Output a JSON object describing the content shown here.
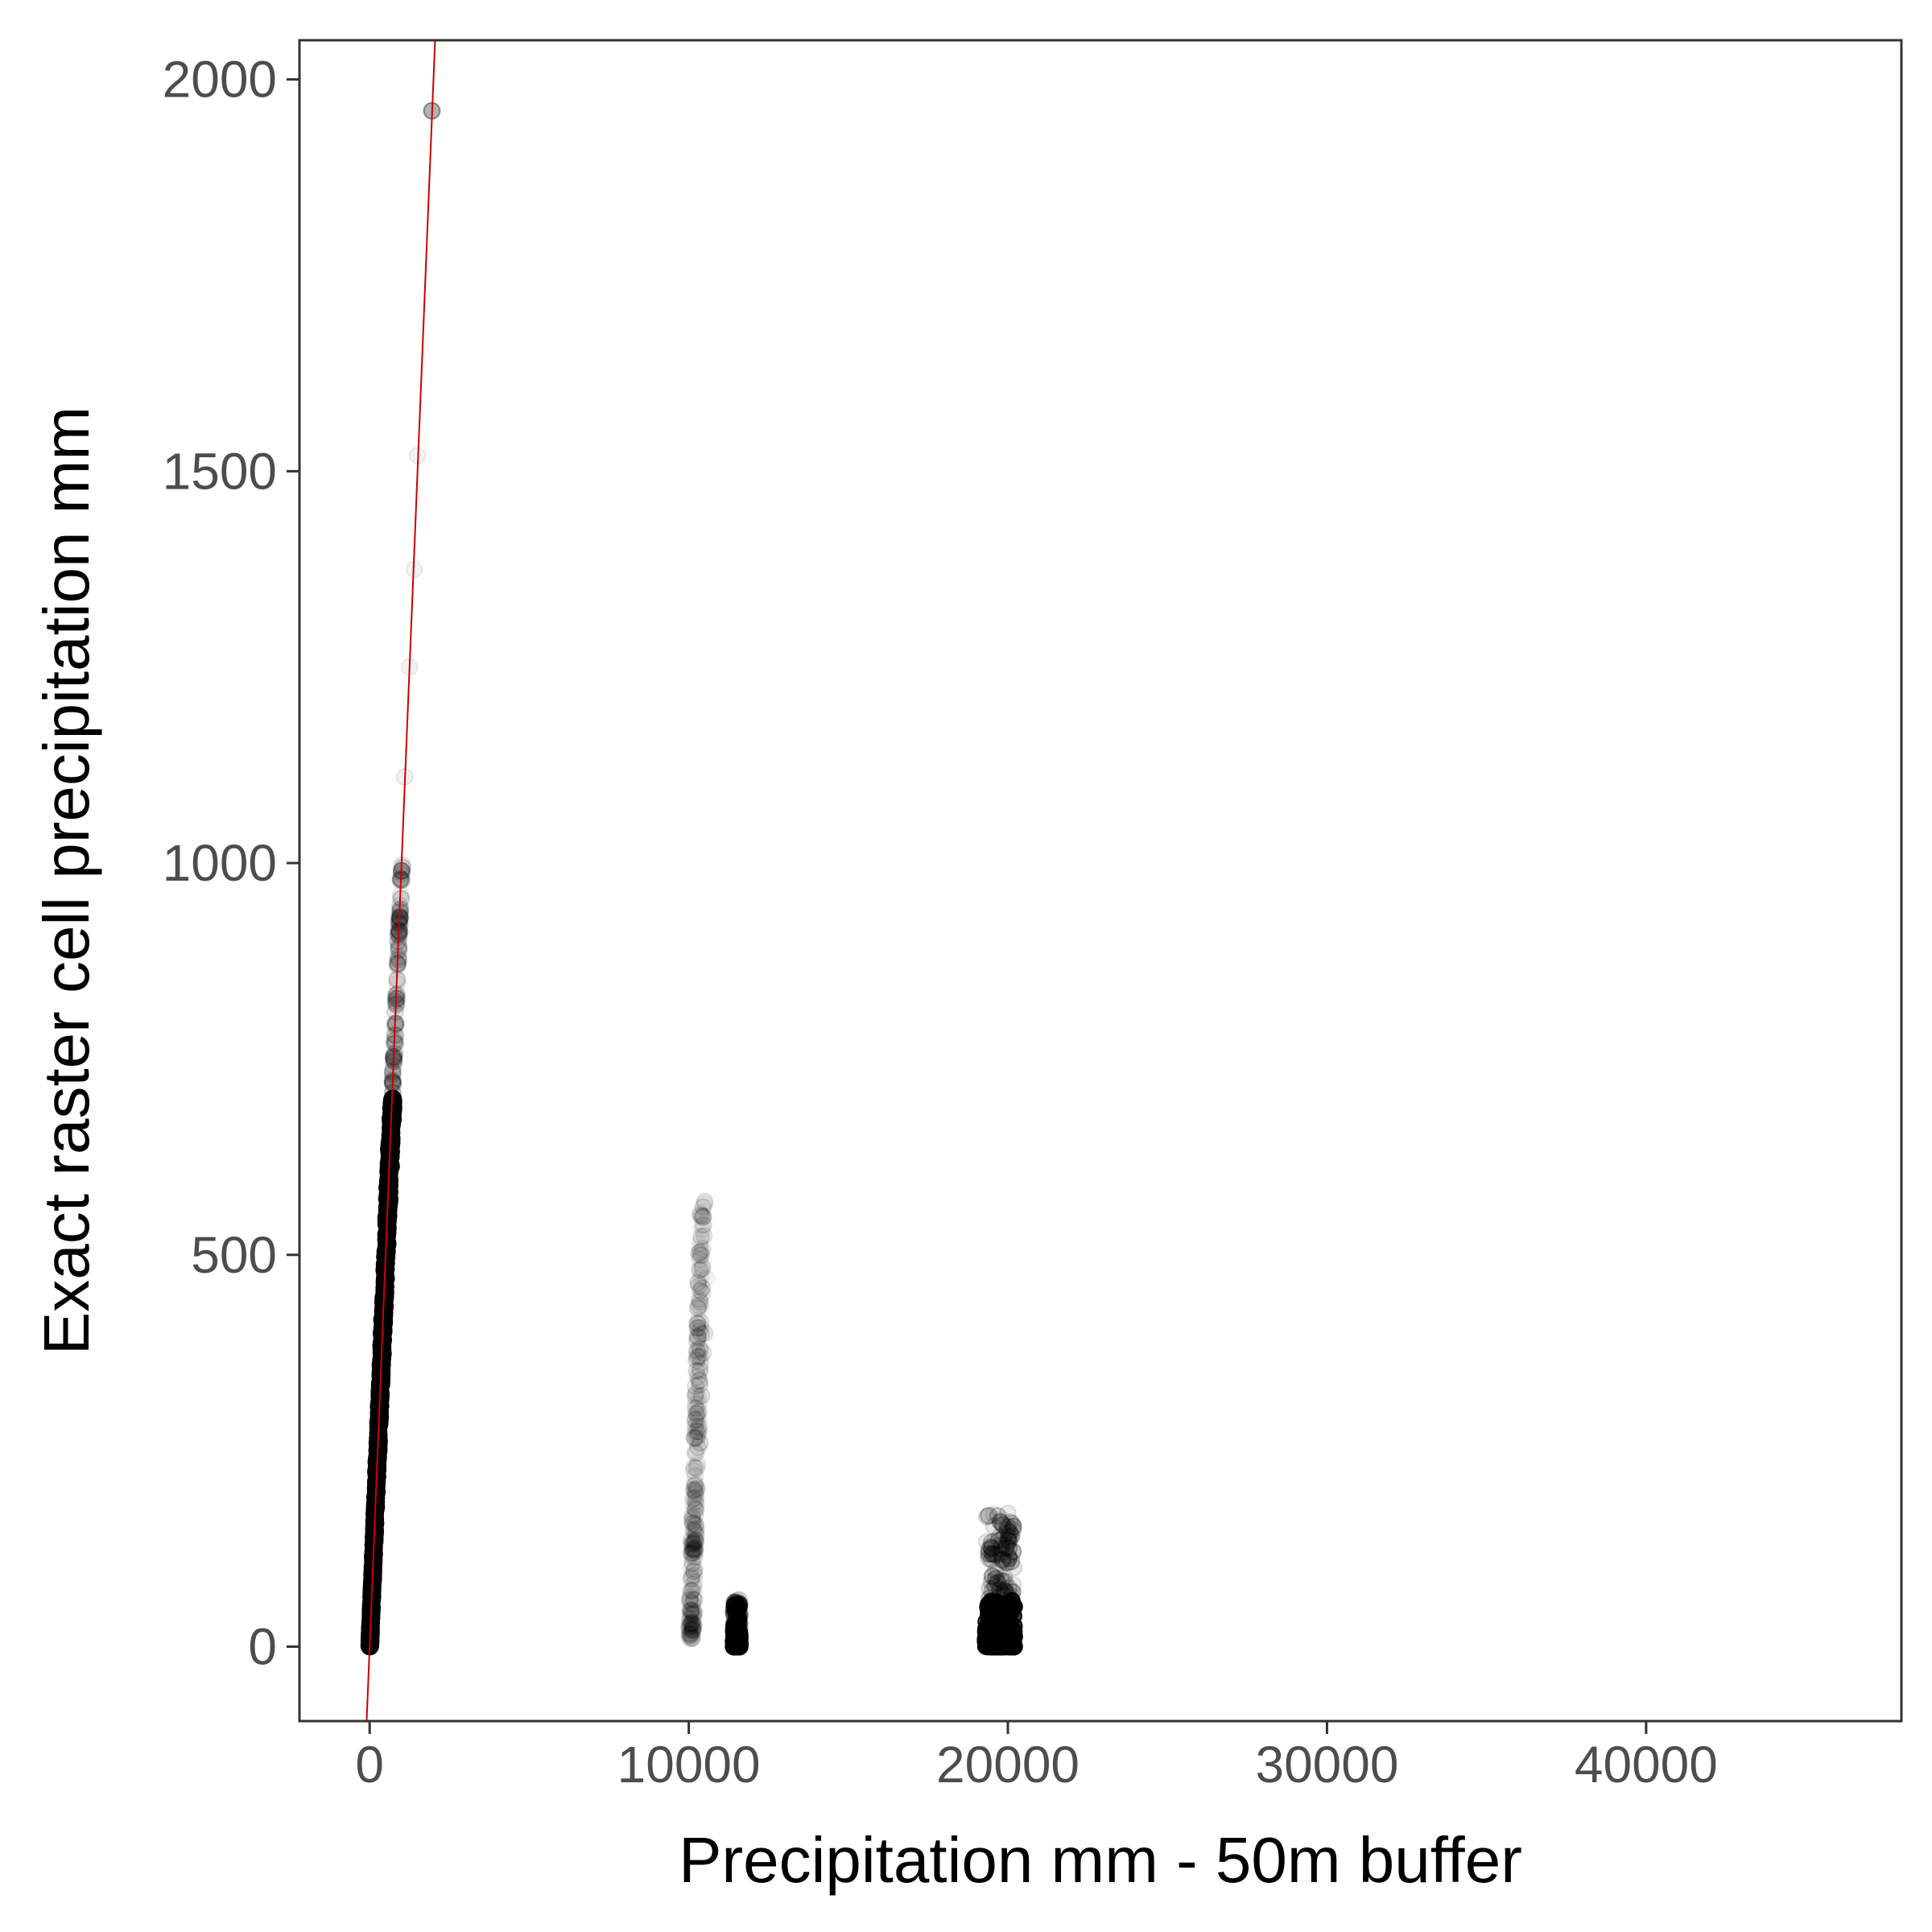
{
  "chart_data": {
    "type": "scatter",
    "title": "",
    "xlabel": "Precipitation mm - 50m buffer",
    "ylabel": "Exact raster cell precipitation mm",
    "xlim": [
      -2200,
      48000
    ],
    "ylim": [
      -95,
      2050
    ],
    "x_ticks": [
      0,
      10000,
      20000,
      30000,
      40000
    ],
    "x_tick_labels": [
      "0",
      "10000",
      "20000",
      "30000",
      "40000"
    ],
    "y_ticks": [
      0,
      500,
      1000,
      1500,
      2000
    ],
    "y_tick_labels": [
      "0",
      "500",
      "1000",
      "1500",
      "2000"
    ],
    "grid": false,
    "legend": "none",
    "point_color": "#000000",
    "reference_line": {
      "slope": 1,
      "intercept": 0,
      "color": "#cc0000",
      "label": ""
    },
    "clusters": [
      {
        "name": "",
        "x_min": 0,
        "x_max": 700,
        "y_min": 0,
        "y_max": 700,
        "along_line": true,
        "density": "dense"
      },
      {
        "name": "",
        "x_min": 10000,
        "x_max": 10600,
        "y_min": 10,
        "y_max": 570,
        "along_line": false,
        "density": "faint"
      },
      {
        "name": "",
        "x_min": 11400,
        "x_max": 11600,
        "y_min": 0,
        "y_max": 60,
        "along_line": false,
        "density": "dense"
      },
      {
        "name": "",
        "x_min": 19300,
        "x_max": 20200,
        "y_min": 0,
        "y_max": 170,
        "along_line": false,
        "density": "dense"
      }
    ],
    "points": [
      {
        "x": 1950,
        "y": 1960,
        "alpha": 0.3
      },
      {
        "x": 1000,
        "y": 990,
        "alpha": 0.3
      },
      {
        "x": 950,
        "y": 930,
        "alpha": 0.3
      },
      {
        "x": 1400,
        "y": 1375,
        "alpha": 0.05
      },
      {
        "x": 1500,
        "y": 1520,
        "alpha": 0.05
      },
      {
        "x": 1100,
        "y": 1110,
        "alpha": 0.06
      },
      {
        "x": 1250,
        "y": 1250,
        "alpha": 0.05
      },
      {
        "x": 800,
        "y": 810,
        "alpha": 0.1
      },
      {
        "x": 750,
        "y": 750,
        "alpha": 0.2
      },
      {
        "x": 900,
        "y": 880,
        "alpha": 0.1
      },
      {
        "x": 720,
        "y": 720,
        "alpha": 0.25
      },
      {
        "x": 10500,
        "y": 565,
        "alpha": 0.05
      },
      {
        "x": 10550,
        "y": 470,
        "alpha": 0.04
      },
      {
        "x": 10500,
        "y": 400,
        "alpha": 0.08
      },
      {
        "x": 10450,
        "y": 375,
        "alpha": 0.08
      },
      {
        "x": 10400,
        "y": 320,
        "alpha": 0.1
      },
      {
        "x": 10350,
        "y": 260,
        "alpha": 0.1
      },
      {
        "x": 20000,
        "y": 170,
        "alpha": 0.08
      },
      {
        "x": 19950,
        "y": 130,
        "alpha": 0.1
      }
    ]
  }
}
